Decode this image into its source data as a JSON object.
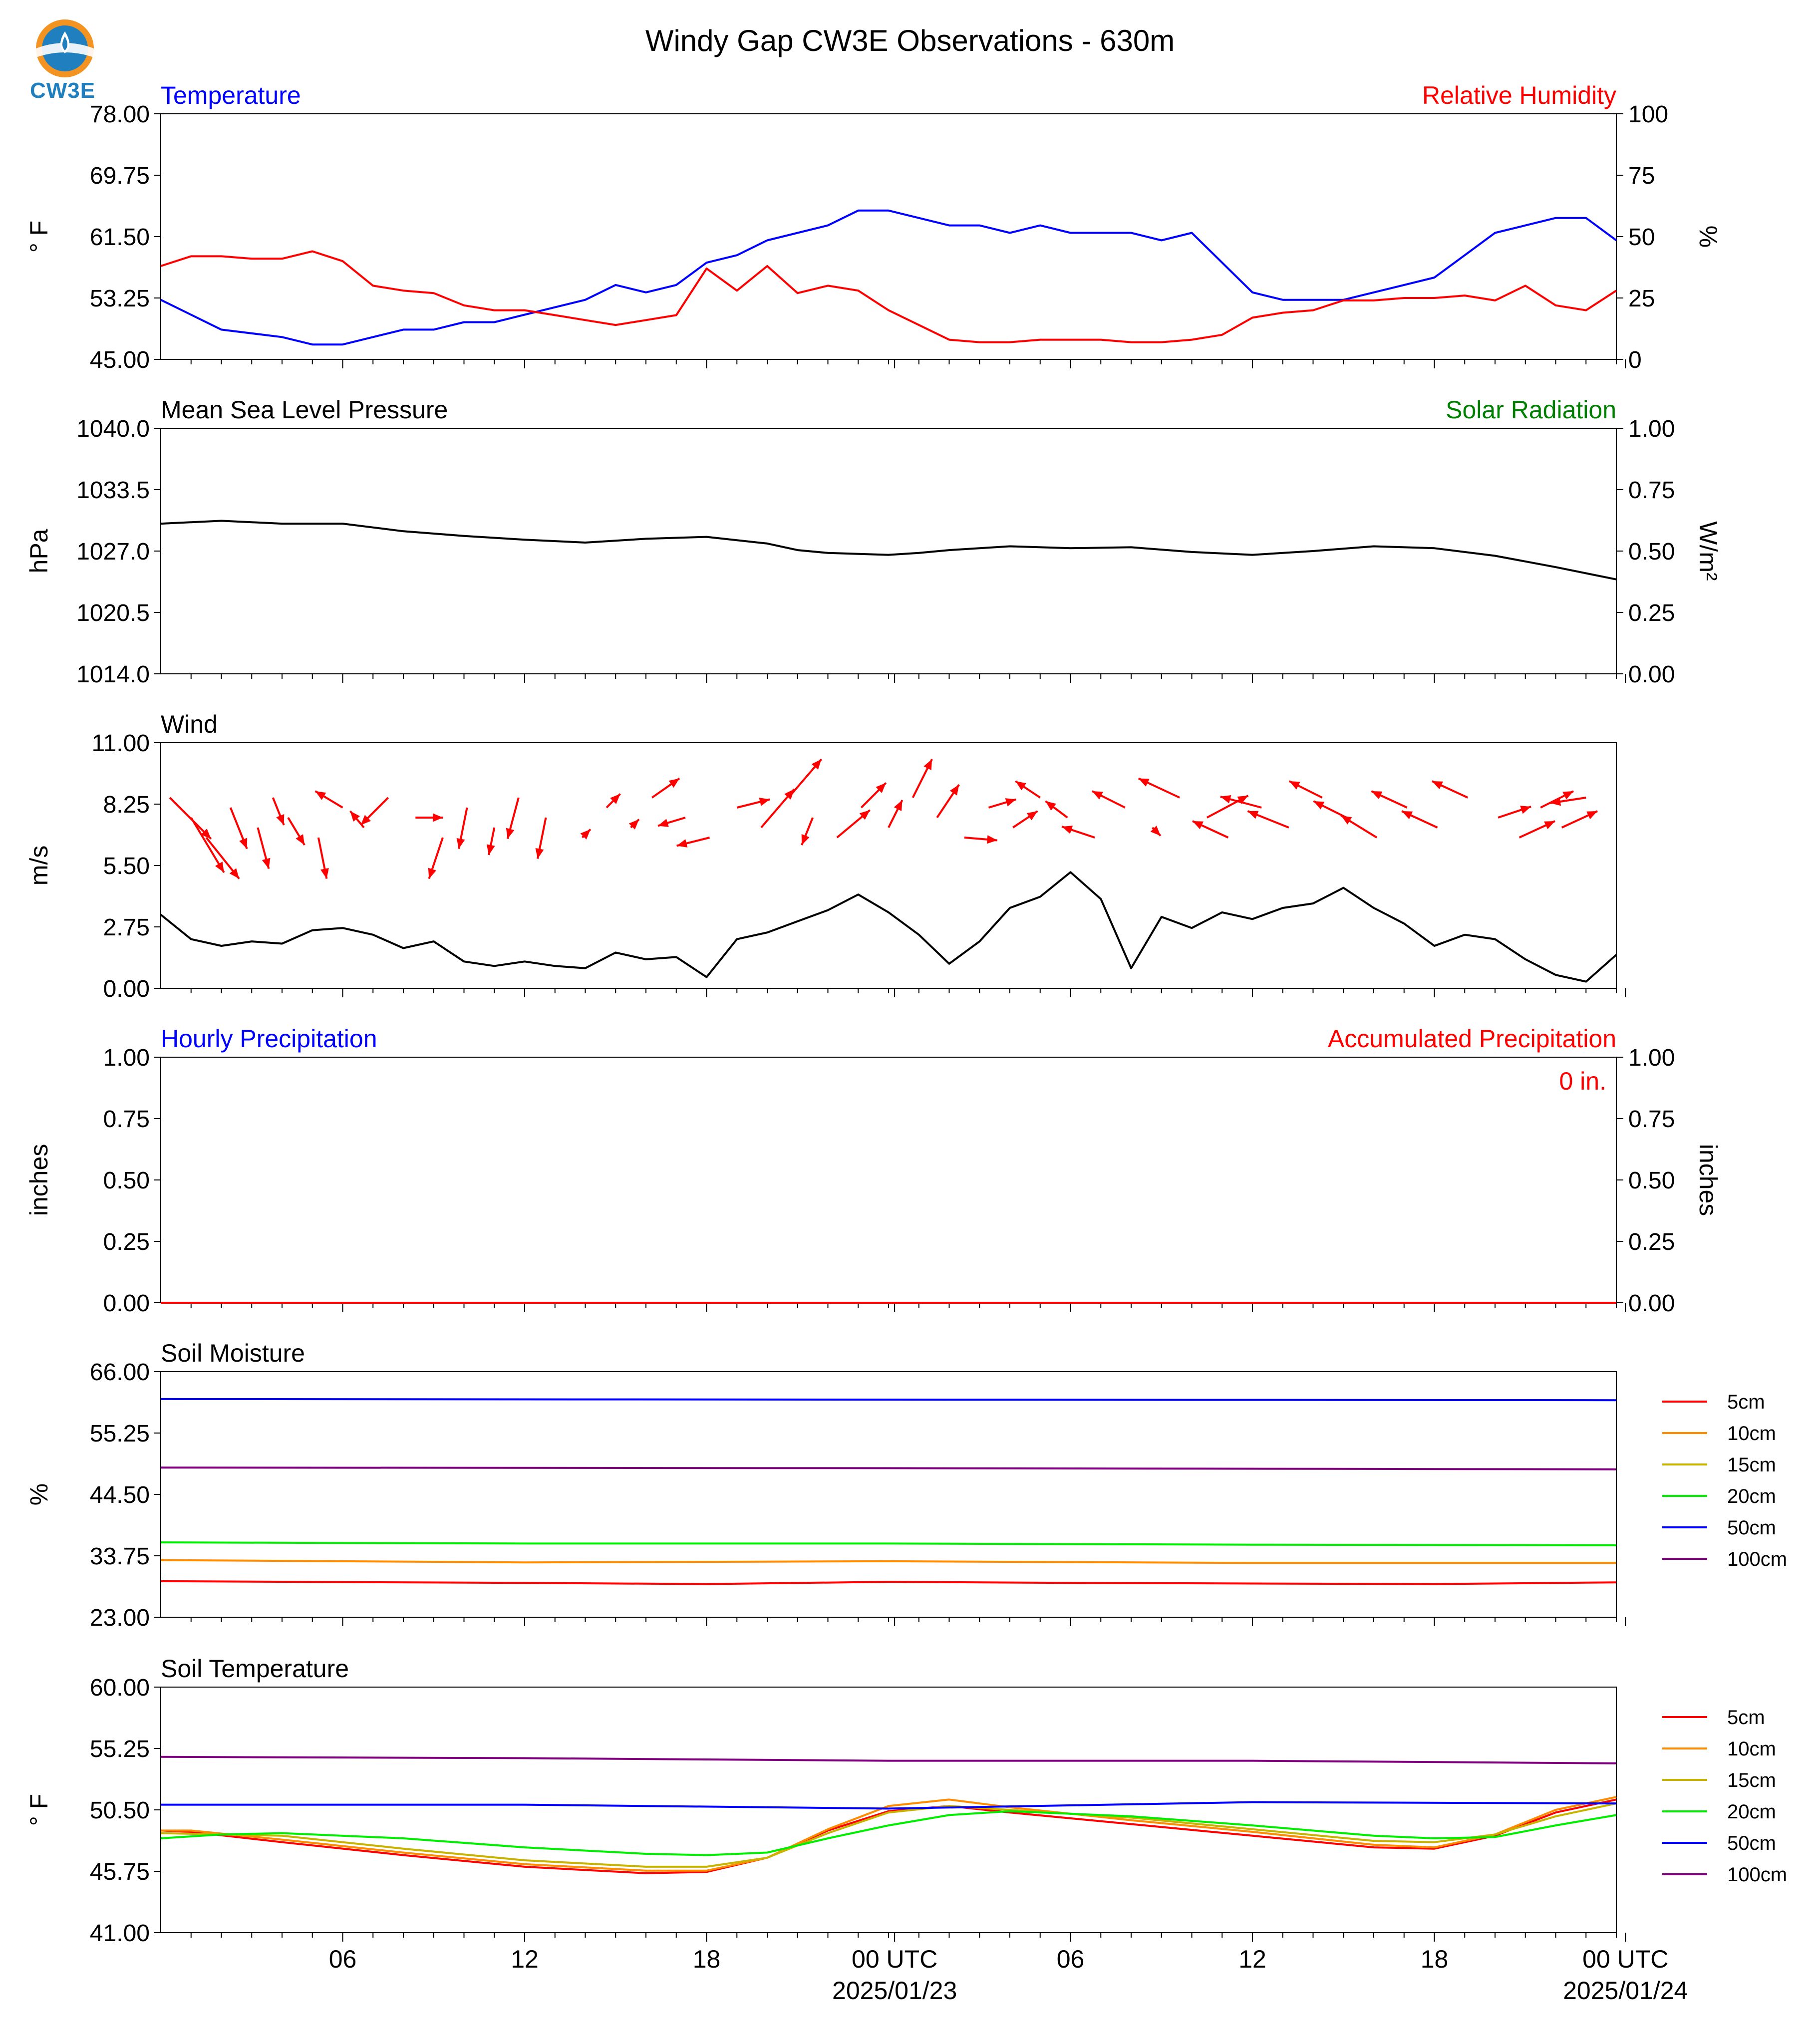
{
  "title": "Windy Gap CW3E Observations - 630m",
  "logo_text": "CW3E",
  "colors": {
    "blue": "#0000ff",
    "red": "#ff0000",
    "green": "#008000",
    "black": "#000000",
    "s5": "#ff0000",
    "s10": "#ff8c00",
    "s15": "#c8b400",
    "s20": "#00ee00",
    "s50": "#0000ff",
    "s100": "#800080"
  },
  "x_axis": {
    "tick_labels": [
      "06",
      "12",
      "18",
      "00 UTC",
      "06",
      "12",
      "18",
      "00 UTC"
    ],
    "date_labels": [
      "2025/01/23",
      "2025/01/24"
    ]
  },
  "chart_data": [
    {
      "type": "line",
      "label_left": "Temperature",
      "label_right": "Relative Humidity",
      "ylabel": "° F",
      "ylabel_right": "%",
      "yticks": [
        "78.00",
        "69.75",
        "61.50",
        "53.25",
        "45.00"
      ],
      "yticks_right": [
        "100",
        "75",
        "50",
        "25",
        "0"
      ],
      "ylim": [
        45,
        78
      ],
      "ylim_right": [
        0,
        100
      ],
      "series": [
        {
          "axis": "left",
          "color": "blue",
          "x": [
            0,
            2,
            4,
            5,
            6,
            8,
            9,
            10,
            11,
            12,
            13,
            14,
            15,
            16,
            17,
            18,
            19,
            20,
            21,
            22,
            23,
            24,
            25,
            26,
            27,
            28,
            29,
            30,
            31,
            32,
            33,
            34,
            35,
            36,
            37,
            38,
            39,
            40,
            41,
            42,
            43,
            44,
            45,
            46,
            47,
            48
          ],
          "y": [
            53,
            49,
            48,
            47,
            47,
            49,
            49,
            50,
            50,
            51,
            52,
            53,
            55,
            54,
            55,
            58,
            59,
            61,
            62,
            63,
            65,
            65,
            64,
            63,
            63,
            62,
            63,
            62,
            62,
            62,
            61,
            62,
            58,
            54,
            53,
            53,
            53,
            54,
            55,
            56,
            59,
            62,
            63,
            64,
            64,
            61
          ]
        },
        {
          "axis": "right",
          "color": "red",
          "x": [
            0,
            1,
            2,
            3,
            4,
            5,
            6,
            7,
            8,
            9,
            10,
            11,
            12,
            13,
            14,
            15,
            16,
            17,
            18,
            19,
            20,
            21,
            22,
            23,
            24,
            25,
            26,
            27,
            28,
            29,
            30,
            31,
            32,
            33,
            34,
            35,
            36,
            37,
            38,
            39,
            40,
            41,
            42,
            43,
            44,
            45,
            46,
            47,
            48
          ],
          "y": [
            38,
            42,
            42,
            41,
            41,
            44,
            40,
            30,
            28,
            27,
            22,
            20,
            20,
            18,
            16,
            14,
            16,
            18,
            37,
            28,
            38,
            27,
            30,
            28,
            20,
            14,
            8,
            7,
            7,
            8,
            8,
            8,
            7,
            7,
            8,
            10,
            17,
            19,
            20,
            24,
            24,
            25,
            25,
            26,
            24,
            30,
            22,
            20,
            28
          ]
        }
      ]
    },
    {
      "type": "line",
      "label_left": "Mean Sea Level Pressure",
      "label_right": "Solar Radiation",
      "ylabel": "hPa",
      "ylabel_right": "W/m²",
      "yticks": [
        "1040.0",
        "1033.5",
        "1027.0",
        "1020.5",
        "1014.0"
      ],
      "yticks_right": [
        "1.00",
        "0.75",
        "0.50",
        "0.25",
        "0.00"
      ],
      "ylim": [
        1014,
        1040
      ],
      "ylim_right": [
        0,
        1
      ],
      "series": [
        {
          "axis": "left",
          "color": "black",
          "x": [
            0,
            2,
            4,
            6,
            7,
            8,
            10,
            12,
            14,
            16,
            18,
            20,
            21,
            22,
            24,
            25,
            26,
            28,
            30,
            32,
            34,
            36,
            38,
            40,
            41,
            42,
            44,
            46,
            48
          ],
          "y": [
            1029.9,
            1030.2,
            1029.9,
            1029.9,
            1029.5,
            1029.1,
            1028.6,
            1028.2,
            1027.9,
            1028.3,
            1028.5,
            1027.8,
            1027.1,
            1026.8,
            1026.6,
            1026.8,
            1027.1,
            1027.5,
            1027.3,
            1027.4,
            1026.9,
            1026.6,
            1027.0,
            1027.5,
            1027.4,
            1027.3,
            1026.5,
            1025.3,
            1024.0
          ]
        }
      ]
    },
    {
      "type": "line",
      "label_left": "Wind",
      "ylabel": "m/s",
      "yticks": [
        "11.00",
        "8.25",
        "5.50",
        "2.75",
        "0.00"
      ],
      "ylim": [
        0,
        11
      ],
      "series": [
        {
          "axis": "left",
          "color": "black",
          "x": [
            0,
            1,
            2,
            3,
            4,
            5,
            6,
            7,
            8,
            9,
            10,
            11,
            12,
            13,
            14,
            15,
            16,
            17,
            18,
            19,
            20,
            21,
            22,
            23,
            24,
            25,
            26,
            27,
            28,
            29,
            30,
            31,
            32,
            33,
            34,
            35,
            36,
            37,
            38,
            39,
            40,
            41,
            42,
            43,
            44,
            45,
            46,
            47,
            48
          ],
          "y": [
            3.3,
            2.2,
            1.9,
            2.1,
            2.0,
            2.6,
            2.7,
            2.4,
            1.8,
            2.1,
            1.2,
            1.0,
            1.2,
            1.0,
            0.9,
            1.6,
            1.3,
            1.4,
            0.5,
            2.2,
            2.5,
            3.0,
            3.5,
            4.2,
            3.4,
            2.4,
            1.1,
            2.1,
            3.6,
            4.1,
            5.2,
            4.0,
            0.9,
            3.2,
            2.7,
            3.4,
            3.1,
            3.6,
            3.8,
            4.5,
            3.6,
            2.9,
            1.9,
            2.4,
            2.2,
            1.3,
            0.6,
            0.3,
            1.5
          ]
        }
      ],
      "barbs": {
        "color": "red",
        "x": [
          0.3,
          1,
          1.5,
          2.3,
          3.2,
          3.7,
          4.2,
          5.2,
          6,
          6.7,
          7.5,
          8.4,
          9.3,
          10.1,
          11,
          11.8,
          12.7,
          13.9,
          14.7,
          15.5,
          16.2,
          17.3,
          18.1,
          19,
          19.8,
          20.7,
          21.5,
          22.3,
          23.1,
          24,
          24.8,
          25.6,
          26.5,
          27.3,
          28.1,
          29,
          29.9,
          30.8,
          31.8,
          32.7,
          33.6,
          34.5,
          35.2,
          36.3,
          37.2,
          38.3,
          39.1,
          40.1,
          41.1,
          42.1,
          43.1,
          44.1,
          44.8,
          45.5,
          46.2,
          47
        ],
        "u": [
          1.5,
          1.2,
          1.2,
          0.6,
          0.4,
          0.4,
          0.6,
          0.3,
          -1.0,
          -0.5,
          -1.0,
          1.0,
          -0.5,
          -0.3,
          -0.2,
          -0.4,
          -0.3,
          0.3,
          0.5,
          0.3,
          1.0,
          -1.0,
          -1.2,
          1.2,
          1.2,
          1.2,
          -0.4,
          1.2,
          0.9,
          0.5,
          0.7,
          0.8,
          1.2,
          1.0,
          0.9,
          -0.9,
          -0.8,
          -1.2,
          -1.2,
          0.3,
          -1.5,
          1.5,
          -1.3,
          -1.5,
          -1.5,
          -1.2,
          -1.2,
          -1.3,
          -1.3,
          -1.3,
          -1.3,
          1.2,
          1.3,
          1.2,
          1.3,
          -1.3
        ],
        "v": [
          -1.5,
          -2.0,
          -1.5,
          -1.5,
          -1.5,
          -1.0,
          -1.0,
          -1.5,
          0.6,
          0.6,
          -1.0,
          0,
          -1.5,
          -1.5,
          -1.0,
          -1.5,
          -1.5,
          0.3,
          0.5,
          0.3,
          0.7,
          -0.3,
          -0.3,
          0.3,
          1.4,
          1.4,
          -1.0,
          1.0,
          0.9,
          1.0,
          1.4,
          1.2,
          -0.1,
          0.3,
          0.6,
          0.6,
          0.6,
          0.4,
          0.6,
          -0.3,
          0.7,
          0.8,
          0.6,
          0.4,
          0.6,
          0.6,
          0.6,
          0.8,
          0.6,
          0.6,
          0.6,
          0.4,
          0.6,
          0.6,
          0.6,
          -0.2
        ]
      }
    },
    {
      "type": "line",
      "label_left": "Hourly Precipitation",
      "label_right": "Accumulated Precipitation",
      "ylabel": "inches",
      "ylabel_right": "inches",
      "annotation": "0 in.",
      "yticks": [
        "1.00",
        "0.75",
        "0.50",
        "0.25",
        "0.00"
      ],
      "yticks_right": [
        "1.00",
        "0.75",
        "0.50",
        "0.25",
        "0.00"
      ],
      "ylim": [
        0,
        1
      ],
      "ylim_right": [
        0,
        1
      ],
      "series": [
        {
          "axis": "right",
          "color": "red",
          "x": [
            0,
            48
          ],
          "y": [
            0,
            0
          ]
        }
      ]
    },
    {
      "type": "line",
      "label_left": "Soil Moisture",
      "ylabel": "%",
      "yticks": [
        "66.00",
        "55.25",
        "44.50",
        "33.75",
        "23.00"
      ],
      "ylim": [
        23,
        66
      ],
      "legend": [
        "5cm",
        "10cm",
        "15cm",
        "20cm",
        "50cm",
        "100cm"
      ],
      "series": [
        {
          "name": "5cm",
          "color": "s5",
          "x": [
            0,
            12,
            18,
            24,
            30,
            36,
            42,
            48
          ],
          "y": [
            29.3,
            29.0,
            28.8,
            29.2,
            29.0,
            28.9,
            28.8,
            29.1
          ]
        },
        {
          "name": "10cm",
          "color": "s10",
          "x": [
            0,
            12,
            24,
            36,
            48
          ],
          "y": [
            33.0,
            32.6,
            32.8,
            32.5,
            32.5
          ]
        },
        {
          "name": "20cm",
          "color": "s20",
          "x": [
            0,
            12,
            24,
            36,
            48
          ],
          "y": [
            36.1,
            35.9,
            35.9,
            35.7,
            35.6
          ]
        },
        {
          "name": "50cm",
          "color": "s50",
          "x": [
            0,
            24,
            48
          ],
          "y": [
            61.2,
            61.1,
            61.0
          ]
        },
        {
          "name": "100cm",
          "color": "s100",
          "x": [
            0,
            24,
            48
          ],
          "y": [
            49.2,
            49.1,
            48.9
          ]
        }
      ]
    },
    {
      "type": "line",
      "label_left": "Soil Temperature",
      "ylabel": "° F",
      "yticks": [
        "60.00",
        "55.25",
        "50.50",
        "45.75",
        "41.00"
      ],
      "ylim": [
        41,
        60
      ],
      "legend": [
        "5cm",
        "10cm",
        "15cm",
        "20cm",
        "50cm",
        "100cm"
      ],
      "series": [
        {
          "name": "5cm",
          "color": "s5",
          "x": [
            0,
            1,
            4,
            8,
            12,
            16,
            18,
            20,
            22,
            24,
            26,
            28,
            32,
            36,
            40,
            42,
            44,
            46,
            48
          ],
          "y": [
            48.9,
            48.8,
            48.0,
            47.0,
            46.1,
            45.6,
            45.7,
            46.8,
            48.9,
            50.4,
            50.8,
            50.3,
            49.4,
            48.5,
            47.6,
            47.5,
            48.5,
            50.3,
            51.3
          ]
        },
        {
          "name": "10cm",
          "color": "s10",
          "x": [
            0,
            1,
            4,
            8,
            12,
            16,
            18,
            20,
            22,
            24,
            26,
            28,
            32,
            36,
            40,
            42,
            44,
            46,
            48
          ],
          "y": [
            48.9,
            48.9,
            48.2,
            47.2,
            46.3,
            45.8,
            45.8,
            46.8,
            49.0,
            50.8,
            51.3,
            50.7,
            49.7,
            48.8,
            47.8,
            47.6,
            48.6,
            50.5,
            51.5
          ]
        },
        {
          "name": "15cm",
          "color": "s15",
          "x": [
            0,
            4,
            8,
            12,
            16,
            18,
            20,
            22,
            24,
            26,
            28,
            32,
            36,
            40,
            42,
            44,
            46,
            48
          ],
          "y": [
            48.7,
            48.5,
            47.5,
            46.6,
            46.1,
            46.1,
            46.8,
            48.7,
            50.3,
            50.8,
            50.5,
            49.9,
            49.0,
            48.1,
            48.0,
            48.6,
            50.0,
            51.0
          ]
        },
        {
          "name": "20cm",
          "color": "s20",
          "x": [
            0,
            2,
            4,
            8,
            12,
            16,
            18,
            20,
            22,
            24,
            26,
            28,
            32,
            36,
            40,
            42,
            44,
            46,
            48
          ],
          "y": [
            48.3,
            48.6,
            48.7,
            48.3,
            47.6,
            47.1,
            47.0,
            47.2,
            48.3,
            49.3,
            50.1,
            50.4,
            50.0,
            49.3,
            48.5,
            48.3,
            48.4,
            49.3,
            50.1
          ]
        },
        {
          "name": "50cm",
          "color": "s50",
          "x": [
            0,
            12,
            24,
            36,
            48
          ],
          "y": [
            50.9,
            50.9,
            50.6,
            51.1,
            51.0
          ]
        },
        {
          "name": "100cm",
          "color": "s100",
          "x": [
            0,
            12,
            24,
            36,
            48
          ],
          "y": [
            54.6,
            54.5,
            54.3,
            54.3,
            54.1
          ]
        }
      ]
    }
  ]
}
